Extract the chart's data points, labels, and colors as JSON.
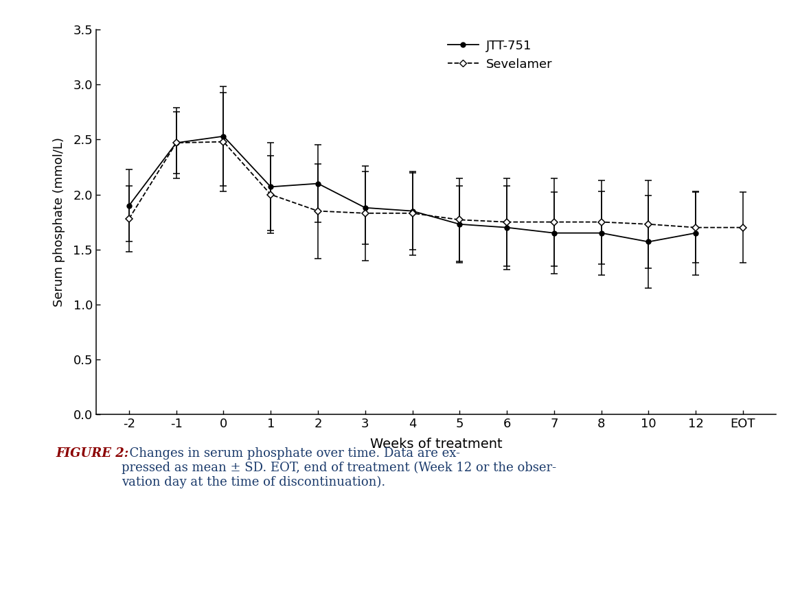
{
  "x_indices": [
    0,
    1,
    2,
    3,
    4,
    5,
    6,
    7,
    8,
    9,
    10,
    11,
    12,
    13
  ],
  "x_labels": [
    "-2",
    "-1",
    "0",
    "1",
    "2",
    "3",
    "4",
    "5",
    "6",
    "7",
    "8",
    "10",
    "12",
    "EOT"
  ],
  "jtt751_y": [
    1.9,
    2.47,
    2.53,
    2.07,
    2.1,
    1.88,
    1.85,
    1.73,
    1.7,
    1.65,
    1.65,
    1.57,
    1.65,
    null
  ],
  "jtt751_err": [
    0.33,
    0.28,
    0.45,
    0.4,
    0.35,
    0.33,
    0.35,
    0.35,
    0.38,
    0.37,
    0.38,
    0.42,
    0.38,
    null
  ],
  "sevelamer_y": [
    1.78,
    2.47,
    2.48,
    2.0,
    1.85,
    1.83,
    1.83,
    1.77,
    1.75,
    1.75,
    1.75,
    1.73,
    1.7,
    1.7
  ],
  "sevelamer_err": [
    0.3,
    0.32,
    0.45,
    0.35,
    0.43,
    0.43,
    0.38,
    0.38,
    0.4,
    0.4,
    0.38,
    0.4,
    0.32,
    0.32
  ],
  "ylim": [
    0.0,
    3.5
  ],
  "yticks": [
    0.0,
    0.5,
    1.0,
    1.5,
    2.0,
    2.5,
    3.0,
    3.5
  ],
  "ylabel": "Serum phosphate (mmol/L)",
  "xlabel": "Weeks of treatment",
  "legend_jtt": "JTT-751",
  "legend_sev": "Sevelamer",
  "caption_bold": "FIGURE 2:",
  "caption_rest": "  Changes in serum phosphate over time. Data are ex-\npressed as mean ± SD. EOT, end of treatment (Week 12 or the obser-\nvation day at the time of discontinuation).",
  "background_color": "#ffffff",
  "caption_bold_color": "#8b0000",
  "caption_text_color": "#1a3a6b"
}
